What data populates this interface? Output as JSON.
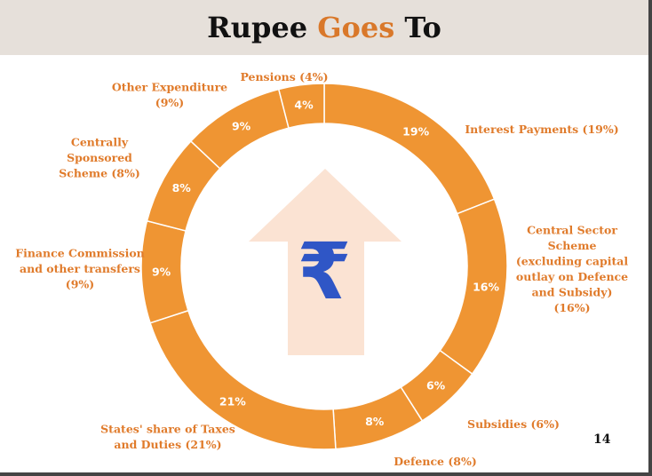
{
  "title": {
    "main": "Rupee",
    "accent": "Goes",
    "tail": "To"
  },
  "page_number": "14",
  "colors": {
    "ring": "#ef9533",
    "label": "#e07b2b",
    "arrow": "#fbe3d3",
    "rupee": "#2f56c6",
    "band": "#e6e0da"
  },
  "icons": {
    "center": "rupee-symbol-icon",
    "arrow": "up-arrow-icon"
  },
  "rupee_symbol": "₹",
  "chart_data": {
    "type": "pie",
    "donut": true,
    "title": "Rupee Goes To",
    "slices": [
      {
        "label": "Interest Payments (19%)",
        "value": 19,
        "pct_text": "19%",
        "label_lines": [
          "Interest Payments (19%)"
        ]
      },
      {
        "label": "Central Sector Scheme (excluding capital outlay on Defence and Subsidy) (16%)",
        "value": 16,
        "pct_text": "16%",
        "label_lines": [
          "Central Sector",
          "Scheme",
          "(excluding capital",
          "outlay on Defence",
          "and Subsidy)",
          "(16%)"
        ]
      },
      {
        "label": "Subsidies (6%)",
        "value": 6,
        "pct_text": "6%",
        "label_lines": [
          "Subsidies (6%)"
        ]
      },
      {
        "label": "Defence (8%)",
        "value": 8,
        "pct_text": "8%",
        "label_lines": [
          "Defence (8%)"
        ]
      },
      {
        "label": "States' share of Taxes and Duties (21%)",
        "value": 21,
        "pct_text": "21%",
        "label_lines": [
          "States' share of Taxes",
          "and Duties (21%)"
        ]
      },
      {
        "label": "Finance Commission and other transfers (9%)",
        "value": 9,
        "pct_text": "9%",
        "label_lines": [
          "Finance Commission",
          "and other transfers",
          "(9%)"
        ]
      },
      {
        "label": "Centrally Sponsored Scheme (8%)",
        "value": 8,
        "pct_text": "8%",
        "label_lines": [
          "Centrally",
          "Sponsored",
          "Scheme (8%)"
        ]
      },
      {
        "label": "Other Expenditure (9%)",
        "value": 9,
        "pct_text": "9%",
        "label_lines": [
          "Other Expenditure",
          "(9%)"
        ]
      },
      {
        "label": "Pensions (4%)",
        "value": 4,
        "pct_text": "4%",
        "label_lines": [
          "Pensions (4%)"
        ]
      }
    ]
  }
}
